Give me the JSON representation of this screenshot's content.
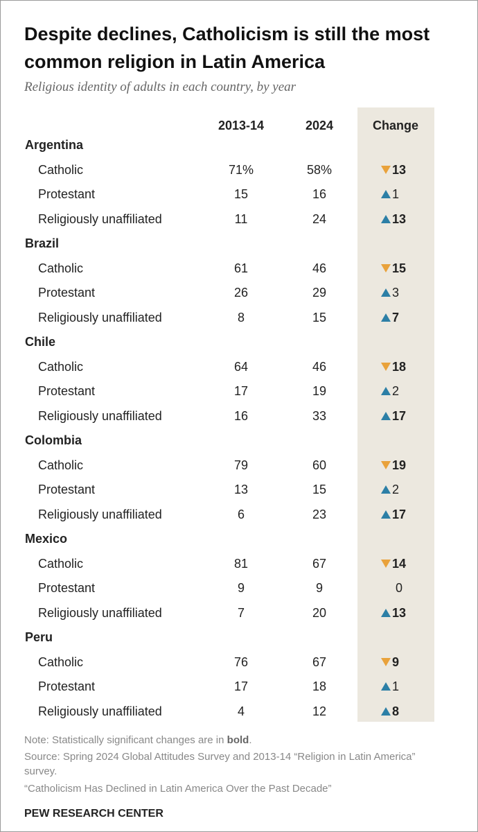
{
  "header": {
    "title": "Despite declines, Catholicism is still the most common religion in Latin America",
    "subtitle": "Religious identity of adults in each country, by year"
  },
  "table": {
    "columns": [
      "2013-14",
      "2024",
      "Change"
    ],
    "countries": [
      {
        "name": "Argentina",
        "rows": [
          {
            "label": "Catholic",
            "y2013": "71%",
            "y2024": "58%",
            "change": {
              "value": 13,
              "direction": "down",
              "bold": true
            }
          },
          {
            "label": "Protestant",
            "y2013": 15,
            "y2024": 16,
            "change": {
              "value": 1,
              "direction": "up",
              "bold": false
            }
          },
          {
            "label": "Religiously unaffiliated",
            "y2013": 11,
            "y2024": 24,
            "change": {
              "value": 13,
              "direction": "up",
              "bold": true
            }
          }
        ]
      },
      {
        "name": "Brazil",
        "rows": [
          {
            "label": "Catholic",
            "y2013": 61,
            "y2024": 46,
            "change": {
              "value": 15,
              "direction": "down",
              "bold": true
            }
          },
          {
            "label": "Protestant",
            "y2013": 26,
            "y2024": 29,
            "change": {
              "value": 3,
              "direction": "up",
              "bold": false
            }
          },
          {
            "label": "Religiously unaffiliated",
            "y2013": 8,
            "y2024": 15,
            "change": {
              "value": 7,
              "direction": "up",
              "bold": true
            }
          }
        ]
      },
      {
        "name": "Chile",
        "rows": [
          {
            "label": "Catholic",
            "y2013": 64,
            "y2024": 46,
            "change": {
              "value": 18,
              "direction": "down",
              "bold": true
            }
          },
          {
            "label": "Protestant",
            "y2013": 17,
            "y2024": 19,
            "change": {
              "value": 2,
              "direction": "up",
              "bold": false
            }
          },
          {
            "label": "Religiously unaffiliated",
            "y2013": 16,
            "y2024": 33,
            "change": {
              "value": 17,
              "direction": "up",
              "bold": true
            }
          }
        ]
      },
      {
        "name": "Colombia",
        "rows": [
          {
            "label": "Catholic",
            "y2013": 79,
            "y2024": 60,
            "change": {
              "value": 19,
              "direction": "down",
              "bold": true
            }
          },
          {
            "label": "Protestant",
            "y2013": 13,
            "y2024": 15,
            "change": {
              "value": 2,
              "direction": "up",
              "bold": false
            }
          },
          {
            "label": "Religiously unaffiliated",
            "y2013": 6,
            "y2024": 23,
            "change": {
              "value": 17,
              "direction": "up",
              "bold": true
            }
          }
        ]
      },
      {
        "name": "Mexico",
        "rows": [
          {
            "label": "Catholic",
            "y2013": 81,
            "y2024": 67,
            "change": {
              "value": 14,
              "direction": "down",
              "bold": true
            }
          },
          {
            "label": "Protestant",
            "y2013": 9,
            "y2024": 9,
            "change": {
              "value": 0,
              "direction": "none",
              "bold": false
            }
          },
          {
            "label": "Religiously unaffiliated",
            "y2013": 7,
            "y2024": 20,
            "change": {
              "value": 13,
              "direction": "up",
              "bold": true
            }
          }
        ]
      },
      {
        "name": "Peru",
        "rows": [
          {
            "label": "Catholic",
            "y2013": 76,
            "y2024": 67,
            "change": {
              "value": 9,
              "direction": "down",
              "bold": true
            }
          },
          {
            "label": "Protestant",
            "y2013": 17,
            "y2024": 18,
            "change": {
              "value": 1,
              "direction": "up",
              "bold": false
            }
          },
          {
            "label": "Religiously unaffiliated",
            "y2013": 4,
            "y2024": 12,
            "change": {
              "value": 8,
              "direction": "up",
              "bold": true
            }
          }
        ]
      }
    ]
  },
  "footer": {
    "note": [
      "Note: Statistically significant changes are in ",
      "bold",
      "."
    ],
    "source": "Source: Spring 2024 Global Attitudes Survey and 2013-14 “Religion in Latin America” survey.",
    "report": "“Catholicism Has Declined in Latin America Over the Past Decade”",
    "brand": "PEW RESEARCH CENTER"
  }
}
